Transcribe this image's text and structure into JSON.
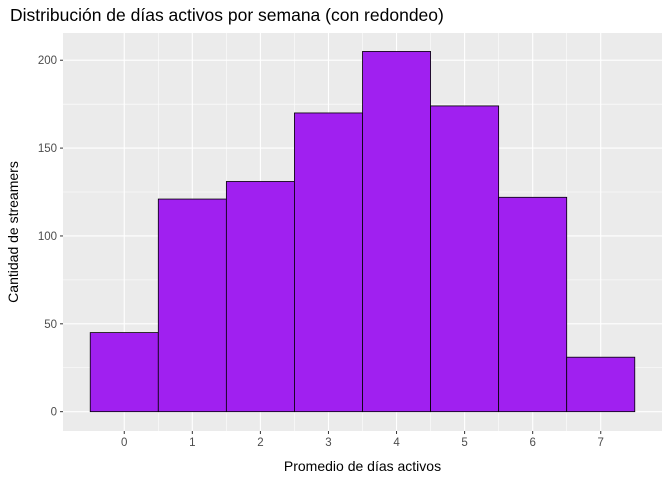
{
  "chart_data": {
    "type": "bar",
    "title": "Distribución de días activos por semana (con redondeo)",
    "xlabel": "Promedio de días activos",
    "ylabel": "Cantidad de streamers",
    "categories": [
      "0",
      "1",
      "2",
      "3",
      "4",
      "5",
      "6",
      "7"
    ],
    "values": [
      45,
      121,
      131,
      170,
      205,
      174,
      122,
      31
    ],
    "y_ticks": [
      0,
      50,
      100,
      150,
      200
    ],
    "ylim": [
      -11,
      215.5
    ],
    "xlim": [
      -0.9,
      7.9
    ],
    "bar_fill": "#A020F0",
    "bar_stroke": "#000000",
    "panel_background": "#EBEBEB",
    "grid_color": "#FFFFFF",
    "grid": true
  }
}
